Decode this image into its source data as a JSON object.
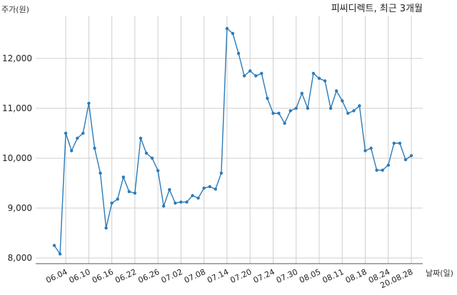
{
  "chart_data": {
    "type": "line",
    "title": "피씨디렉트, 최근 3개월",
    "ylabel": "주가(원)",
    "xlabel": "날짜(일)",
    "ylim": [
      7800,
      12800
    ],
    "yticks": [
      8000,
      9000,
      10000,
      11000,
      12000
    ],
    "ytick_labels": [
      "8,000",
      "9,000",
      "10,000",
      "11,000",
      "12,000"
    ],
    "grid": true,
    "line_color": "#2b7bb9",
    "x_tick_labels": [
      "06.04",
      "06.10",
      "06.16",
      "06.22",
      "06.26",
      "07.02",
      "07.08",
      "07.14",
      "07.20",
      "07.24",
      "07.30",
      "08.05",
      "08.11",
      "08.18",
      "08.24",
      "20.08.28"
    ],
    "x_tick_index": [
      2,
      6,
      10,
      14,
      18,
      22,
      26,
      30,
      34,
      38,
      42,
      46,
      50,
      54,
      58,
      62
    ],
    "values": [
      8250,
      8080,
      10500,
      10150,
      10400,
      10500,
      11100,
      10200,
      9700,
      8600,
      9100,
      9180,
      9620,
      9330,
      9300,
      10400,
      10100,
      10000,
      9750,
      9040,
      9370,
      9100,
      9120,
      9120,
      9250,
      9200,
      9400,
      9430,
      9380,
      9700,
      12600,
      12500,
      12100,
      11650,
      11750,
      11650,
      11700,
      11200,
      10900,
      10900,
      10700,
      10950,
      11000,
      11300,
      11000,
      11700,
      11600,
      11550,
      11000,
      11350,
      11150,
      10900,
      10950,
      11050,
      10150,
      10200,
      9760,
      9760,
      9860,
      10300,
      10300,
      9970,
      10050
    ]
  }
}
